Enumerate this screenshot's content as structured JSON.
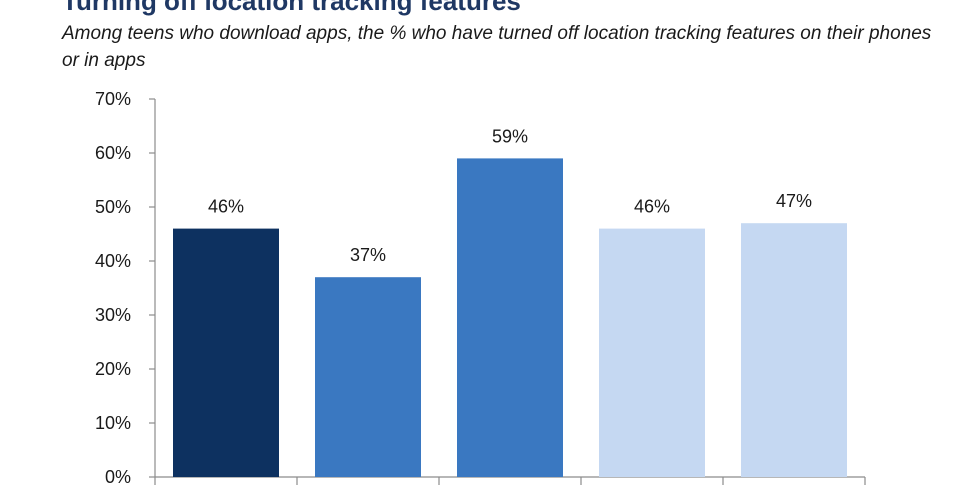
{
  "chart_data": {
    "type": "bar",
    "title": "Turning off location tracking features",
    "subtitle": "Among teens who download apps, the % who have turned off location tracking features on their phones or in apps",
    "categories": [
      "",
      "",
      "",
      "",
      ""
    ],
    "values": [
      46,
      37,
      59,
      46,
      47
    ],
    "value_labels": [
      "46%",
      "37%",
      "59%",
      "46%",
      "47%"
    ],
    "bar_colors": [
      "#0d3160",
      "#3a78c1",
      "#3a78c1",
      "#c5d8f2",
      "#c5d8f2"
    ],
    "ylim": [
      0,
      70
    ],
    "yticks": [
      0,
      10,
      20,
      30,
      40,
      50,
      60,
      70
    ],
    "ytick_labels": [
      "0%",
      "10%",
      "20%",
      "30%",
      "40%",
      "50%",
      "60%",
      "70%"
    ],
    "xlabel": "",
    "ylabel": "",
    "grid": false,
    "legend": "none"
  }
}
